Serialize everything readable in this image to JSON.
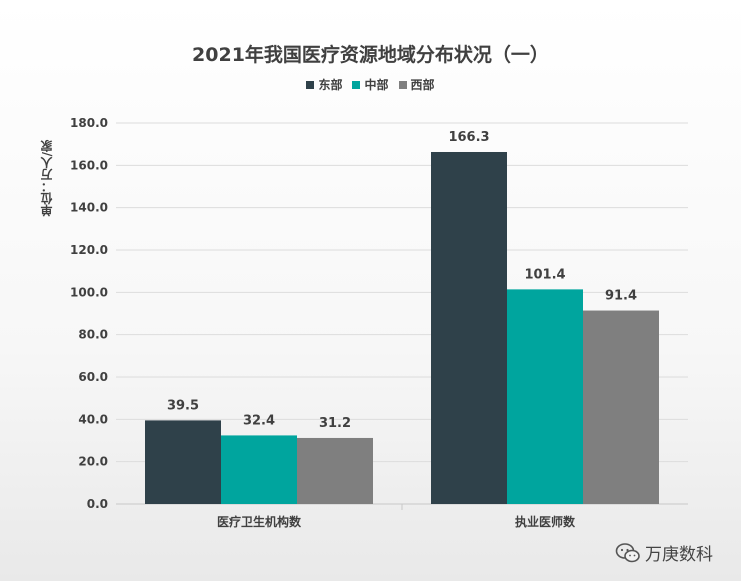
{
  "chart_data": {
    "type": "bar",
    "title": "2021年我国医疗资源地域分布状况（一）",
    "ylabel": "单位：万人/家",
    "categories": [
      "医疗卫生机构数",
      "执业医师数"
    ],
    "series": [
      {
        "name": "东部",
        "color": "#2f414a",
        "values": [
          39.5,
          166.3
        ]
      },
      {
        "name": "中部",
        "color": "#00a59e",
        "values": [
          32.4,
          101.4
        ]
      },
      {
        "name": "西部",
        "color": "#7f7f7f",
        "values": [
          31.2,
          91.4
        ]
      }
    ],
    "ylim": [
      0,
      180
    ],
    "yticks": [
      "0.0",
      "20.0",
      "40.0",
      "60.0",
      "80.0",
      "100.0",
      "120.0",
      "140.0",
      "160.0",
      "180.0"
    ],
    "grid": true,
    "legend_position": "top-center"
  },
  "watermark": {
    "text": "万庚数科",
    "icon": "wechat-icon"
  }
}
